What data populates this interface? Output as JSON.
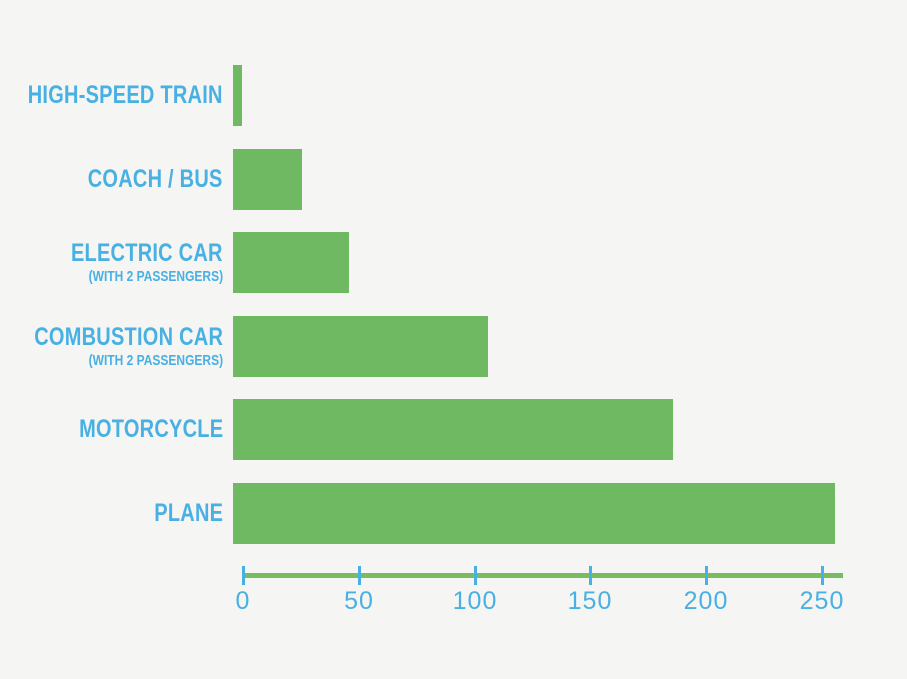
{
  "chart_data": {
    "type": "bar",
    "orientation": "horizontal",
    "title": "",
    "xlabel": "",
    "ylabel": "",
    "categories": [
      "HIGH-SPEED TRAIN",
      "COACH / BUS",
      "ELECTRIC CAR",
      "COMBUSTION CAR",
      "MOTORCYCLE",
      "PLANE"
    ],
    "sublabels": [
      "",
      "",
      "(WITH 2 PASSENGERS)",
      "(WITH 2 PASSENGERS)",
      "",
      ""
    ],
    "values": [
      4,
      30,
      50,
      110,
      190,
      260
    ],
    "x_ticks": [
      0,
      50,
      100,
      150,
      200,
      250
    ],
    "xlim": [
      0,
      259
    ],
    "grid": false,
    "legend": false,
    "colors": {
      "bar": "#6eb962",
      "axis_line": "#79bd63",
      "labels": "#48b0e2",
      "tick_marks": "#48b0e2",
      "background": "#f5f5f3"
    }
  }
}
